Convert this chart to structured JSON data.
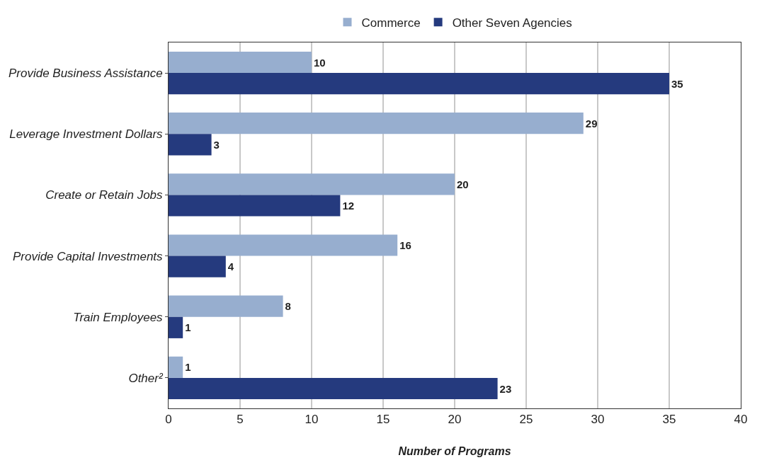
{
  "chart_data": {
    "type": "bar",
    "orientation": "horizontal",
    "xlabel": "Number of Programs",
    "categories": [
      "Provide Business Assistance",
      "Leverage Investment Dollars",
      "Create or Retain Jobs",
      "Provide Capital Investments",
      "Train Employees",
      "Other²"
    ],
    "series": [
      {
        "name": "Commerce",
        "color": "#97aecf",
        "values": [
          10,
          29,
          20,
          16,
          8,
          1
        ]
      },
      {
        "name": "Other Seven Agencies",
        "color": "#253a7e",
        "values": [
          35,
          3,
          12,
          4,
          1,
          23
        ]
      }
    ],
    "xlim": [
      0,
      40
    ],
    "xticks": [
      0,
      5,
      10,
      15,
      20,
      25,
      30,
      35,
      40
    ],
    "grid": "x",
    "legend": "top",
    "data_labels": true
  }
}
